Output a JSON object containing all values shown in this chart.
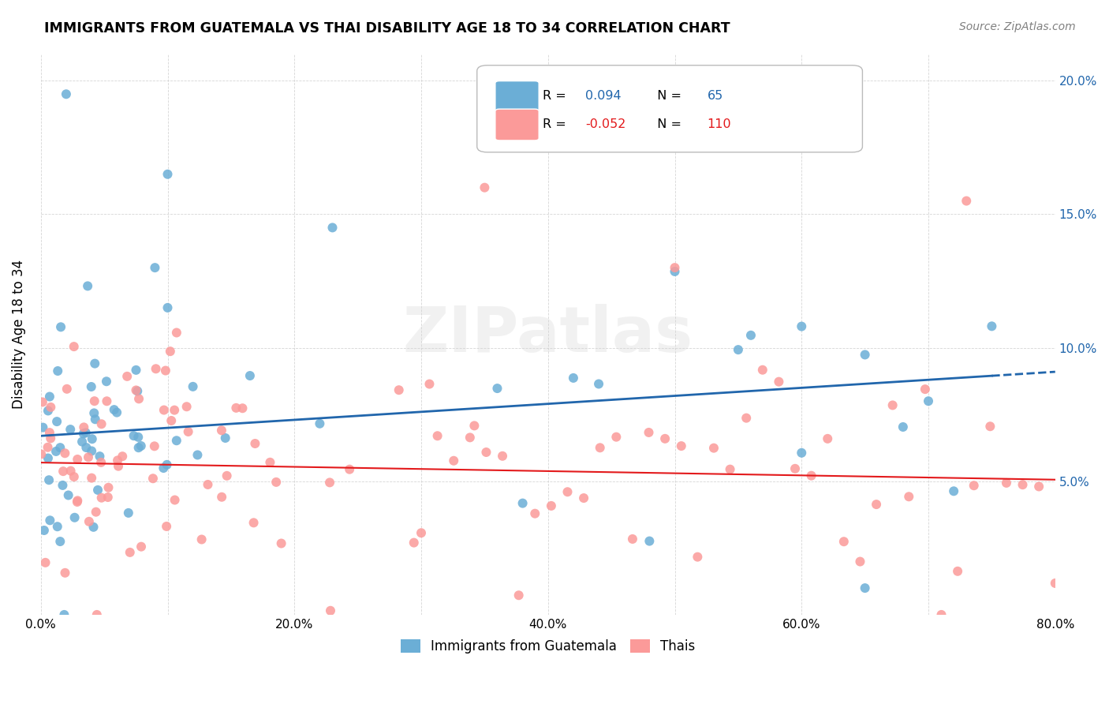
{
  "title": "IMMIGRANTS FROM GUATEMALA VS THAI DISABILITY AGE 18 TO 34 CORRELATION CHART",
  "source": "Source: ZipAtlas.com",
  "ylabel": "Disability Age 18 to 34",
  "xlim": [
    0.0,
    0.8
  ],
  "ylim": [
    0.0,
    0.21
  ],
  "blue_color": "#6baed6",
  "pink_color": "#fb9a99",
  "blue_line_color": "#2166ac",
  "pink_line_color": "#e31a1c",
  "legend_r_blue": "0.094",
  "legend_n_blue": "65",
  "legend_r_pink": "-0.052",
  "legend_n_pink": "110",
  "blue_intercept": 0.067,
  "blue_slope": 0.03,
  "pink_intercept": 0.057,
  "pink_slope": -0.008,
  "watermark_text": "ZIPatlas"
}
